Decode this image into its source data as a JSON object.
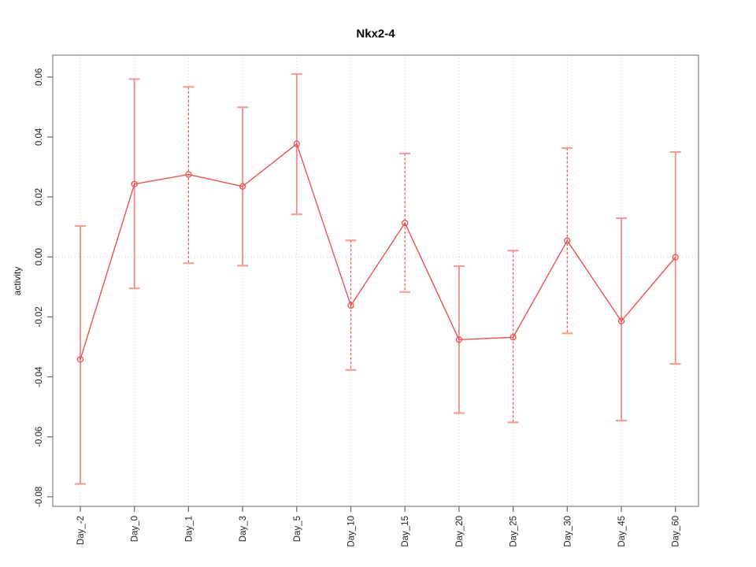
{
  "chart_data": {
    "type": "line",
    "title": "Nkx2-4",
    "xlabel": "",
    "ylabel": "activity",
    "categories": [
      "Day_-2",
      "Day_0",
      "Day_1",
      "Day_3",
      "Day_5",
      "Day_10",
      "Day_15",
      "Day_20",
      "Day_25",
      "Day_30",
      "Day_45",
      "Day_60"
    ],
    "series": [
      {
        "name": "Nkx2-4 activity",
        "values": [
          -0.0342,
          0.0243,
          0.0275,
          0.0235,
          0.0377,
          -0.0162,
          0.0113,
          -0.0276,
          -0.0268,
          0.0054,
          -0.0214,
          -0.0001
        ],
        "err_high": [
          0.0103,
          0.0593,
          0.0567,
          0.0499,
          0.061,
          0.0055,
          0.0345,
          -0.0031,
          0.0021,
          0.0363,
          0.0129,
          0.035
        ],
        "err_low": [
          -0.0757,
          -0.0105,
          -0.0021,
          -0.0029,
          0.0142,
          -0.0377,
          -0.0117,
          -0.0521,
          -0.0552,
          -0.0255,
          -0.0546,
          -0.0357
        ],
        "bar_styles": [
          "solid",
          "solid",
          "dashed",
          "solid",
          "solid",
          "dashed",
          "dashed",
          "solid",
          "dashed",
          "dashed",
          "solid",
          "solid"
        ],
        "marker": "open-circle"
      }
    ],
    "ytick_labels": [
      "0.06",
      "0.04",
      "0.02",
      "0.00",
      "-0.02",
      "-0.04",
      "-0.06",
      "-0.08"
    ],
    "ytick_values": [
      0.06,
      0.04,
      0.02,
      0.0,
      -0.02,
      -0.04,
      -0.06,
      -0.08
    ],
    "ylim": [
      -0.0832,
      0.0673
    ],
    "grid": {
      "vertical_dotted_at_each_category": true,
      "horizontal_dotted_at_zero": true,
      "legend": "none"
    },
    "colors": {
      "series_line": "#ee5050",
      "marker_stroke": "#ee5050",
      "error_bar_solid": "#f38a8a",
      "error_bar_dashed": "#ee5252",
      "error_cap": "#f59e9e",
      "grid_line": "#cccccc",
      "frame": "#8a8a8a",
      "tick": "#666666",
      "tick_text": "#222222",
      "title_text": "#000000"
    }
  }
}
